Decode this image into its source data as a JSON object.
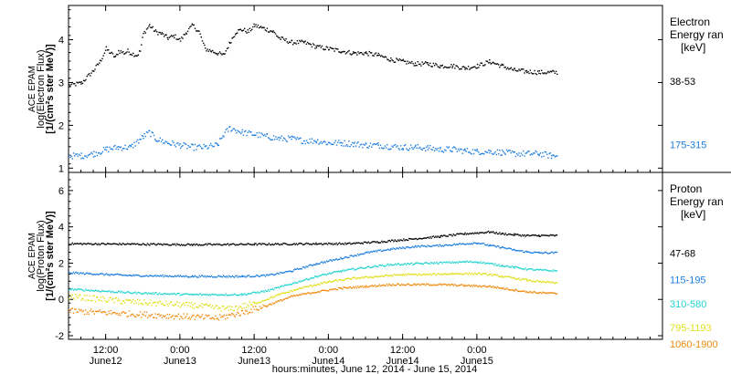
{
  "chart_data": [
    {
      "type": "scatter",
      "panel": "electron",
      "ylabel": [
        "ACE EPAM",
        "log(Electron Flux)",
        "[1/(cm²s ster MeV)]"
      ],
      "ylim": [
        0.9,
        4.8
      ],
      "yticks": [
        1,
        2,
        3,
        4
      ],
      "legend_title": [
        "Electron",
        "Energy ran",
        "[keV]"
      ],
      "series": [
        {
          "name": "38-53",
          "color": "#000000",
          "label_y": 3.03,
          "points": [
            [
              0,
              2.95
            ],
            [
              2,
              3.0
            ],
            [
              4,
              3.3
            ],
            [
              5,
              3.5
            ],
            [
              6,
              3.8
            ],
            [
              7.5,
              3.6
            ],
            [
              8,
              3.75
            ],
            [
              9,
              3.7
            ],
            [
              9.5,
              3.75
            ],
            [
              10,
              3.7
            ],
            [
              11,
              3.65
            ],
            [
              11.5,
              3.75
            ],
            [
              12,
              4.15
            ],
            [
              13,
              4.35
            ],
            [
              14,
              4.2
            ],
            [
              15,
              4.15
            ],
            [
              16,
              4.05
            ],
            [
              17,
              4.1
            ],
            [
              18,
              4.0
            ],
            [
              19,
              4.2
            ],
            [
              20,
              4.35
            ],
            [
              21,
              4.2
            ],
            [
              22,
              3.8
            ],
            [
              23,
              3.75
            ],
            [
              24,
              3.7
            ],
            [
              25,
              3.65
            ],
            [
              26,
              3.95
            ],
            [
              27,
              4.2
            ],
            [
              28,
              4.25
            ],
            [
              29,
              4.2
            ],
            [
              30,
              4.35
            ],
            [
              31,
              4.3
            ],
            [
              32,
              4.25
            ],
            [
              33,
              4.2
            ],
            [
              34,
              4.05
            ],
            [
              36,
              3.95
            ],
            [
              38,
              3.95
            ],
            [
              40,
              3.85
            ],
            [
              42,
              3.8
            ],
            [
              44,
              3.75
            ],
            [
              46,
              3.7
            ],
            [
              48,
              3.7
            ],
            [
              50,
              3.65
            ],
            [
              52,
              3.55
            ],
            [
              54,
              3.5
            ],
            [
              56,
              3.45
            ],
            [
              58,
              3.45
            ],
            [
              60,
              3.4
            ],
            [
              62,
              3.4
            ],
            [
              64,
              3.35
            ],
            [
              66,
              3.4
            ],
            [
              68,
              3.5
            ],
            [
              70,
              3.4
            ],
            [
              72,
              3.3
            ],
            [
              74,
              3.27
            ],
            [
              76,
              3.25
            ],
            [
              78,
              3.25
            ],
            [
              79,
              3.25
            ]
          ]
        },
        {
          "name": "175-315",
          "color": "#1f7fe0",
          "label_y": 1.55,
          "points": [
            [
              0,
              1.3
            ],
            [
              2,
              1.3
            ],
            [
              4,
              1.35
            ],
            [
              6,
              1.45
            ],
            [
              8,
              1.5
            ],
            [
              10,
              1.5
            ],
            [
              12,
              1.75
            ],
            [
              13,
              1.85
            ],
            [
              14,
              1.7
            ],
            [
              16,
              1.6
            ],
            [
              18,
              1.55
            ],
            [
              20,
              1.5
            ],
            [
              22,
              1.5
            ],
            [
              24,
              1.55
            ],
            [
              25,
              1.8
            ],
            [
              26,
              1.95
            ],
            [
              28,
              1.85
            ],
            [
              30,
              1.8
            ],
            [
              32,
              1.75
            ],
            [
              34,
              1.7
            ],
            [
              36,
              1.7
            ],
            [
              38,
              1.65
            ],
            [
              40,
              1.65
            ],
            [
              42,
              1.6
            ],
            [
              44,
              1.6
            ],
            [
              46,
              1.58
            ],
            [
              48,
              1.55
            ],
            [
              50,
              1.55
            ],
            [
              52,
              1.52
            ],
            [
              54,
              1.5
            ],
            [
              56,
              1.5
            ],
            [
              58,
              1.48
            ],
            [
              60,
              1.45
            ],
            [
              62,
              1.45
            ],
            [
              64,
              1.42
            ],
            [
              66,
              1.4
            ],
            [
              68,
              1.4
            ],
            [
              70,
              1.38
            ],
            [
              72,
              1.35
            ],
            [
              74,
              1.35
            ],
            [
              76,
              1.35
            ],
            [
              78,
              1.3
            ],
            [
              79,
              1.3
            ]
          ]
        }
      ]
    },
    {
      "type": "scatter",
      "panel": "proton",
      "ylabel": [
        "ACE EPAM",
        "log(Proton Flux)",
        "[1/(cm²s ster MeV)]"
      ],
      "ylim": [
        -2.2,
        7.0
      ],
      "yticks": [
        -2,
        0,
        2,
        4,
        6
      ],
      "legend_title": [
        "Proton",
        "Energy ran",
        "[keV]"
      ],
      "series": [
        {
          "name": "47-68",
          "color": "#000000",
          "label_y": 2.55,
          "points": [
            [
              0,
              3.1
            ],
            [
              10,
              3.08
            ],
            [
              20,
              3.05
            ],
            [
              30,
              3.07
            ],
            [
              40,
              3.1
            ],
            [
              45,
              3.1
            ],
            [
              50,
              3.2
            ],
            [
              55,
              3.35
            ],
            [
              60,
              3.5
            ],
            [
              64,
              3.65
            ],
            [
              66,
              3.7
            ],
            [
              68,
              3.75
            ],
            [
              70,
              3.65
            ],
            [
              72,
              3.6
            ],
            [
              74,
              3.55
            ],
            [
              76,
              3.55
            ],
            [
              79,
              3.55
            ]
          ]
        },
        {
          "name": "115-195",
          "color": "#1f7fe0",
          "label_y": 1.1,
          "points": [
            [
              0,
              1.5
            ],
            [
              10,
              1.35
            ],
            [
              20,
              1.3
            ],
            [
              28,
              1.3
            ],
            [
              32,
              1.35
            ],
            [
              36,
              1.6
            ],
            [
              40,
              2.0
            ],
            [
              44,
              2.3
            ],
            [
              48,
              2.6
            ],
            [
              52,
              2.8
            ],
            [
              56,
              2.95
            ],
            [
              60,
              3.0
            ],
            [
              64,
              3.1
            ],
            [
              66,
              3.15
            ],
            [
              68,
              3.0
            ],
            [
              70,
              2.9
            ],
            [
              72,
              2.75
            ],
            [
              74,
              2.65
            ],
            [
              76,
              2.6
            ],
            [
              79,
              2.6
            ]
          ]
        },
        {
          "name": "310-580",
          "color": "#25d4d0",
          "label_y": -0.25,
          "points": [
            [
              0,
              0.6
            ],
            [
              10,
              0.4
            ],
            [
              20,
              0.3
            ],
            [
              28,
              0.3
            ],
            [
              32,
              0.5
            ],
            [
              36,
              0.9
            ],
            [
              40,
              1.3
            ],
            [
              44,
              1.6
            ],
            [
              48,
              1.8
            ],
            [
              52,
              1.95
            ],
            [
              56,
              2.0
            ],
            [
              60,
              2.05
            ],
            [
              64,
              2.1
            ],
            [
              66,
              2.1
            ],
            [
              68,
              2.0
            ],
            [
              70,
              1.9
            ],
            [
              72,
              1.8
            ],
            [
              74,
              1.7
            ],
            [
              76,
              1.65
            ],
            [
              79,
              1.6
            ]
          ]
        },
        {
          "name": "795-1193",
          "color": "#e0e020",
          "label_y": -1.55,
          "points": [
            [
              0,
              0.2
            ],
            [
              10,
              -0.1
            ],
            [
              20,
              -0.3
            ],
            [
              26,
              -0.5
            ],
            [
              30,
              -0.2
            ],
            [
              34,
              0.3
            ],
            [
              38,
              0.7
            ],
            [
              42,
              1.0
            ],
            [
              46,
              1.2
            ],
            [
              50,
              1.3
            ],
            [
              54,
              1.4
            ],
            [
              58,
              1.4
            ],
            [
              62,
              1.45
            ],
            [
              66,
              1.45
            ],
            [
              68,
              1.4
            ],
            [
              70,
              1.3
            ],
            [
              72,
              1.2
            ],
            [
              74,
              1.1
            ],
            [
              76,
              1.0
            ],
            [
              79,
              0.95
            ]
          ]
        },
        {
          "name": "1060-1900",
          "color": "#f08a10",
          "label_y": -2.45,
          "points": [
            [
              0,
              -0.6
            ],
            [
              6,
              -0.7
            ],
            [
              12,
              -0.8
            ],
            [
              18,
              -0.9
            ],
            [
              24,
              -1.0
            ],
            [
              28,
              -0.7
            ],
            [
              32,
              -0.3
            ],
            [
              36,
              0.2
            ],
            [
              40,
              0.45
            ],
            [
              44,
              0.65
            ],
            [
              48,
              0.75
            ],
            [
              52,
              0.85
            ],
            [
              56,
              0.85
            ],
            [
              60,
              0.85
            ],
            [
              64,
              0.8
            ],
            [
              68,
              0.75
            ],
            [
              70,
              0.65
            ],
            [
              72,
              0.55
            ],
            [
              74,
              0.45
            ],
            [
              76,
              0.4
            ],
            [
              79,
              0.35
            ]
          ]
        }
      ]
    }
  ],
  "x_axis": {
    "xlim": [
      0,
      96
    ],
    "ticks": [
      {
        "x": 6,
        "time": "12:00",
        "date": "June12"
      },
      {
        "x": 18,
        "time": "0:00",
        "date": "June13"
      },
      {
        "x": 30,
        "time": "12:00",
        "date": "June13"
      },
      {
        "x": 42,
        "time": "0:00",
        "date": "June14"
      },
      {
        "x": 54,
        "time": "12:00",
        "date": "June14"
      },
      {
        "x": 66,
        "time": "0:00",
        "date": "June15"
      }
    ],
    "xlabel": "hours:minutes, June 12, 2014 - June 15, 2014"
  }
}
